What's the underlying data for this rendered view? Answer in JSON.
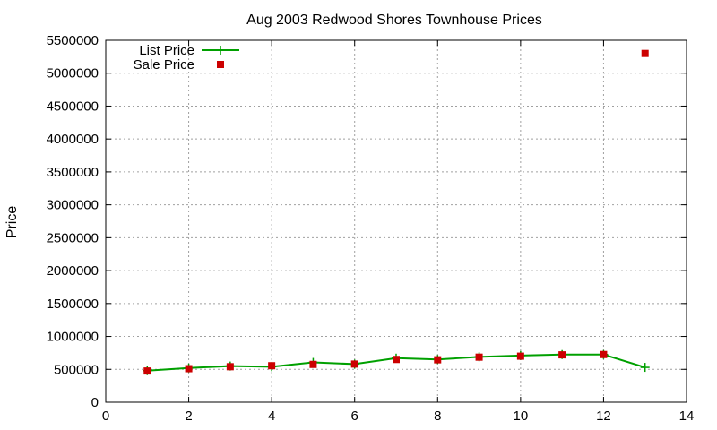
{
  "chart_data": {
    "type": "line",
    "title": "Aug 2003 Redwood Shores Townhouse Prices",
    "xlabel": "",
    "ylabel": "Price",
    "xlim": [
      0,
      14
    ],
    "ylim": [
      0,
      5500000
    ],
    "xticks": [
      "0",
      "2",
      "4",
      "6",
      "8",
      "10",
      "12",
      "14"
    ],
    "yticks": [
      "0",
      "500000",
      "1000000",
      "1500000",
      "2000000",
      "2500000",
      "3000000",
      "3500000",
      "4000000",
      "4500000",
      "5000000",
      "5500000"
    ],
    "grid": true,
    "legend_position": "top-left",
    "series": [
      {
        "name": "List Price",
        "style": "line-with-plus",
        "color": "#00a000",
        "x": [
          1,
          2,
          3,
          4,
          5,
          6,
          7,
          8,
          9,
          10,
          11,
          12,
          13
        ],
        "values": [
          480000,
          520000,
          550000,
          540000,
          605000,
          580000,
          670000,
          650000,
          690000,
          710000,
          725000,
          725000,
          530000
        ]
      },
      {
        "name": "Sale Price",
        "style": "square-markers",
        "color": "#cc0000",
        "x": [
          1,
          2,
          3,
          4,
          5,
          6,
          7,
          8,
          9,
          10,
          11,
          12,
          13
        ],
        "values": [
          475000,
          510000,
          540000,
          555000,
          575000,
          580000,
          650000,
          645000,
          685000,
          700000,
          720000,
          725000,
          5300000
        ]
      }
    ]
  }
}
